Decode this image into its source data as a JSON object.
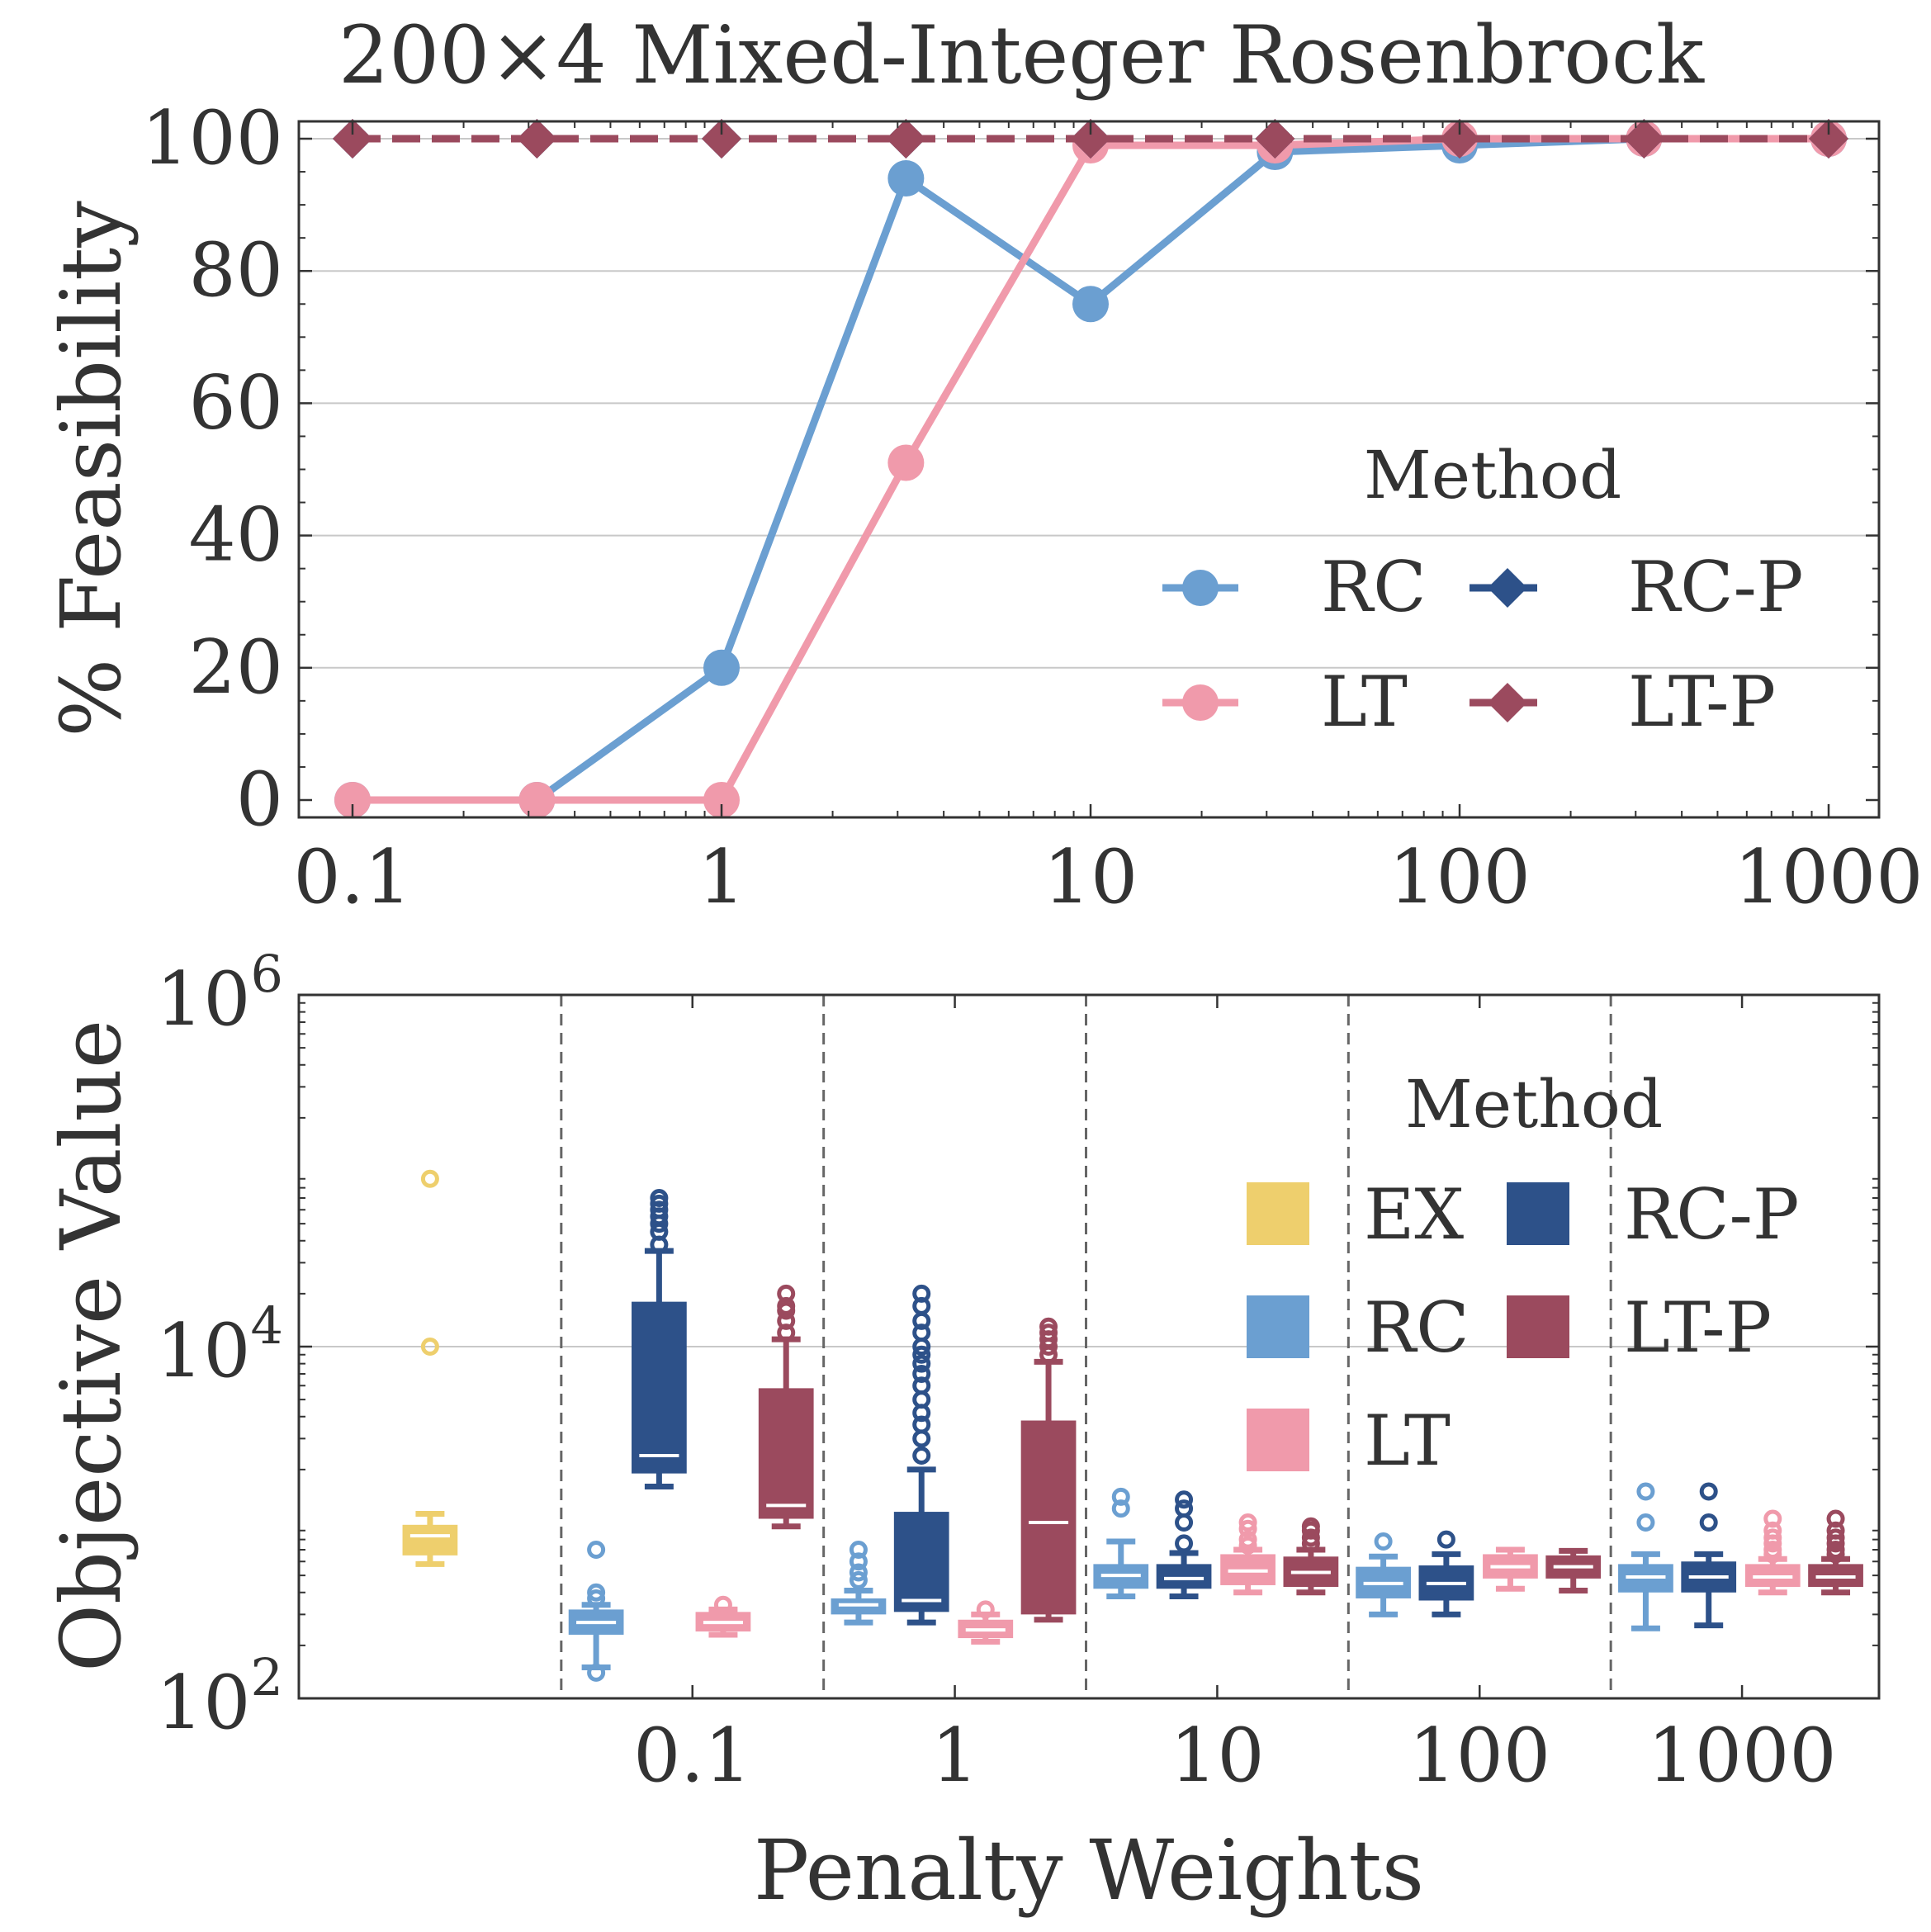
{
  "chart_data": [
    {
      "type": "line",
      "title": "200×4 Mixed-Integer Rosenbrock",
      "xlabel": "",
      "ylabel": "% Feasibility",
      "xscale": "log",
      "xlim": [
        0.1,
        1000
      ],
      "ylim": [
        0,
        100
      ],
      "xticks": [
        0.1,
        1,
        10,
        100,
        1000
      ],
      "xtick_labels": [
        "0.1",
        "1",
        "10",
        "100",
        "1000"
      ],
      "yticks": [
        0,
        20,
        40,
        60,
        80,
        100
      ],
      "ytick_labels": [
        "0",
        "20",
        "40",
        "60",
        "80",
        "100"
      ],
      "grid": "horizontal",
      "x": [
        0.1,
        0.316,
        1,
        3.16,
        10,
        31.6,
        100,
        316,
        1000
      ],
      "series": [
        {
          "name": "RC",
          "color": "#6b9fd1",
          "marker": "circle",
          "linestyle": "solid",
          "values": [
            0,
            0,
            20,
            94,
            75,
            98,
            99,
            100,
            100
          ]
        },
        {
          "name": "LT",
          "color": "#f09aab",
          "marker": "circle",
          "linestyle": "solid",
          "values": [
            0,
            0,
            0,
            51,
            99,
            99,
            100,
            100,
            100
          ]
        },
        {
          "name": "RC-P",
          "color": "#2d5189",
          "marker": "diamond",
          "linestyle": "dashed",
          "values": [
            100,
            100,
            100,
            100,
            100,
            100,
            100,
            100,
            100
          ]
        },
        {
          "name": "LT-P",
          "color": "#9b4a5e",
          "marker": "diamond",
          "linestyle": "dashed",
          "values": [
            100,
            100,
            100,
            100,
            100,
            100,
            100,
            100,
            100
          ]
        }
      ],
      "legend": {
        "title": "Method",
        "placement": "center-right",
        "entries": [
          "RC",
          "RC-P",
          "LT",
          "LT-P"
        ]
      }
    },
    {
      "type": "box",
      "xlabel": "Penalty Weights",
      "ylabel": "Objective Value",
      "yscale": "log",
      "ylim": [
        100,
        1000000
      ],
      "yticks": [
        100,
        10000,
        1000000
      ],
      "ytick_labels": [
        {
          "base": "10",
          "exp": "2"
        },
        {
          "base": "10",
          "exp": "4"
        },
        {
          "base": "10",
          "exp": "6"
        }
      ],
      "group_labels": [
        "",
        "0.1",
        "1",
        "10",
        "100",
        "1000"
      ],
      "grid": "horizontal",
      "groups": [
        {
          "label": "",
          "boxes": [
            {
              "method": "EX",
              "whislo": 580,
              "q1": 650,
              "med": 840,
              "q3": 970,
              "whishi": 1120,
              "fliers": [
                10000,
                90000
              ]
            }
          ]
        },
        {
          "label": "0.1",
          "boxes": [
            {
              "method": "RC",
              "whislo": 150,
              "q1": 230,
              "med": 270,
              "q3": 320,
              "whishi": 340,
              "fliers": [
                140,
                370,
                400,
                700
              ]
            },
            {
              "method": "RC-P",
              "whislo": 1600,
              "q1": 1900,
              "med": 2400,
              "q3": 18000,
              "whishi": 35000,
              "fliers": [
                38000,
                45000,
                50000,
                55000,
                60000,
                65000,
                70000
              ]
            },
            {
              "method": "LT",
              "whislo": 230,
              "q1": 240,
              "med": 270,
              "q3": 310,
              "whishi": 320,
              "fliers": [
                340
              ]
            },
            {
              "method": "LT-P",
              "whislo": 950,
              "q1": 1050,
              "med": 1250,
              "q3": 5800,
              "whishi": 11000,
              "fliers": [
                12000,
                14000,
                16000,
                17000,
                20000
              ]
            }
          ]
        },
        {
          "label": "1",
          "boxes": [
            {
              "method": "RC",
              "whislo": 270,
              "q1": 300,
              "med": 340,
              "q3": 370,
              "whishi": 410,
              "fliers": [
                470,
                520,
                600,
                700
              ]
            },
            {
              "method": "RC-P",
              "whislo": 270,
              "q1": 310,
              "med": 360,
              "q3": 1150,
              "whishi": 2000,
              "fliers": [
                2400,
                3000,
                3600,
                4200,
                5000,
                6000,
                7000,
                8000,
                9000,
                10000,
                12000,
                14000,
                17000,
                20000
              ]
            },
            {
              "method": "LT",
              "whislo": 210,
              "q1": 220,
              "med": 245,
              "q3": 280,
              "whishi": 300,
              "fliers": [
                320
              ]
            },
            {
              "method": "LT-P",
              "whislo": 280,
              "q1": 300,
              "med": 1000,
              "q3": 3800,
              "whishi": 8200,
              "fliers": [
                9000,
                10000,
                11000,
                12000,
                13000
              ]
            }
          ]
        },
        {
          "label": "10",
          "boxes": [
            {
              "method": "RC",
              "whislo": 380,
              "q1": 420,
              "med": 500,
              "q3": 580,
              "whishi": 780,
              "fliers": [
                1200,
                1400
              ]
            },
            {
              "method": "RC-P",
              "whislo": 380,
              "q1": 420,
              "med": 480,
              "q3": 580,
              "whishi": 670,
              "fliers": [
                760,
                1000,
                1200,
                1350
              ]
            },
            {
              "method": "LT",
              "whislo": 400,
              "q1": 440,
              "med": 530,
              "q3": 660,
              "whishi": 700,
              "fliers": [
                740,
                800,
                920,
                1000
              ]
            },
            {
              "method": "LT-P",
              "whislo": 400,
              "q1": 430,
              "med": 520,
              "q3": 640,
              "whishi": 700,
              "fliers": [
                760,
                820,
                900,
                950
              ]
            }
          ]
        },
        {
          "label": "100",
          "boxes": [
            {
              "method": "RC",
              "whislo": 300,
              "q1": 370,
              "med": 450,
              "q3": 560,
              "whishi": 640,
              "fliers": [
                780
              ]
            },
            {
              "method": "RC-P",
              "whislo": 300,
              "q1": 360,
              "med": 450,
              "q3": 570,
              "whishi": 660,
              "fliers": [
                800
              ]
            },
            {
              "method": "LT",
              "whislo": 420,
              "q1": 480,
              "med": 560,
              "q3": 660,
              "whishi": 700,
              "fliers": []
            },
            {
              "method": "LT-P",
              "whislo": 410,
              "q1": 480,
              "med": 560,
              "q3": 650,
              "whishi": 690,
              "fliers": []
            }
          ]
        },
        {
          "label": "1000",
          "boxes": [
            {
              "method": "RC",
              "whislo": 250,
              "q1": 400,
              "med": 490,
              "q3": 580,
              "whishi": 660,
              "fliers": [
                1000,
                1500
              ]
            },
            {
              "method": "RC-P",
              "whislo": 260,
              "q1": 400,
              "med": 490,
              "q3": 600,
              "whishi": 660,
              "fliers": [
                1000,
                1500
              ]
            },
            {
              "method": "LT",
              "whislo": 400,
              "q1": 430,
              "med": 490,
              "q3": 580,
              "whishi": 620,
              "fliers": [
                660,
                700,
                760,
                820,
                900,
                1050
              ]
            },
            {
              "method": "LT-P",
              "whislo": 400,
              "q1": 430,
              "med": 490,
              "q3": 580,
              "whishi": 620,
              "fliers": [
                660,
                700,
                760,
                820,
                900,
                1050
              ]
            }
          ]
        }
      ],
      "method_colors": {
        "EX": "#eecf6d",
        "RC": "#6b9fd1",
        "RC-P": "#2d5189",
        "LT": "#f09aab",
        "LT-P": "#9b4a5e"
      },
      "legend": {
        "title": "Method",
        "placement": "upper-right",
        "entries": [
          "EX",
          "RC-P",
          "RC",
          "LT-P",
          "LT"
        ]
      }
    }
  ]
}
